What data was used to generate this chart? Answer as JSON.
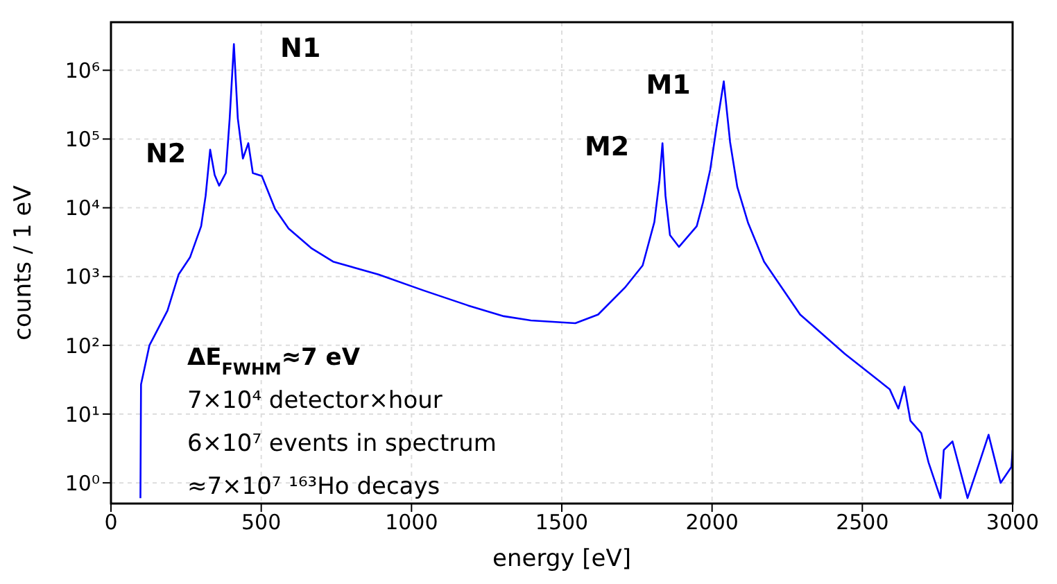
{
  "chart_data": {
    "type": "line",
    "xlabel": "energy [eV]",
    "ylabel": "counts / 1 eV",
    "log": "y",
    "grid": true,
    "marker": "none",
    "line_style": "solid",
    "xlim": [
      0,
      3000
    ],
    "xticks": [
      0,
      500,
      1000,
      1500,
      2000,
      2500,
      3000
    ],
    "ylim": [
      0.5,
      5000000
    ],
    "yticks": [
      {
        "value": 1,
        "label": "10⁰"
      },
      {
        "value": 10,
        "label": "10¹"
      },
      {
        "value": 100,
        "label": "10²"
      },
      {
        "value": 1000,
        "label": "10³"
      },
      {
        "value": 10000,
        "label": "10⁴"
      },
      {
        "value": 100000,
        "label": "10⁵"
      },
      {
        "value": 1000000,
        "label": "10⁶"
      }
    ],
    "series": [
      {
        "color": "#0000ff",
        "x": [
          98,
          100,
          128,
          188,
          225,
          263,
          300,
          315,
          330,
          345,
          360,
          382,
          395,
          409,
          422,
          439,
          457,
          472,
          502,
          546,
          591,
          666,
          739,
          890,
          1039,
          1188,
          1307,
          1397,
          1545,
          1621,
          1710,
          1769,
          1808,
          1825,
          1835,
          1845,
          1860,
          1890,
          1949,
          1970,
          1994,
          2015,
          2039,
          2060,
          2084,
          2120,
          2173,
          2293,
          2442,
          2591,
          2620,
          2640,
          2660,
          2696,
          2720,
          2760,
          2771,
          2800,
          2850,
          2890,
          2920,
          2960,
          2996,
          3000
        ],
        "values": [
          0.6,
          27,
          100,
          320,
          1070,
          1900,
          5400,
          15000,
          70000,
          30000,
          21000,
          32000,
          200000,
          2400000,
          200000,
          52000,
          87000,
          32000,
          29000,
          9600,
          5000,
          2600,
          1650,
          1070,
          630,
          380,
          265,
          230,
          210,
          280,
          690,
          1450,
          6200,
          25000,
          87000,
          15000,
          4000,
          2700,
          5400,
          12000,
          36000,
          150000,
          690000,
          90000,
          20000,
          6000,
          1650,
          280,
          75,
          23,
          12,
          25,
          8,
          5.3,
          2,
          0.6,
          3,
          4,
          0.6,
          2,
          5,
          1,
          1.7,
          3
        ]
      }
    ],
    "annotations": [
      {
        "text": "N1",
        "x": 409,
        "y": 2400000
      },
      {
        "text": "N2",
        "x": 330,
        "y": 70000
      },
      {
        "text": "M2",
        "x": 1835,
        "y": 87000
      },
      {
        "text": "M1",
        "x": 2039,
        "y": 690000
      },
      "ΔE$_{FWHM}$≈7 eV",
      "7×10⁴ detector×hour",
      "6×10⁷ events in spectrum",
      "≈7×10⁷ ¹⁶³Ho decays"
    ]
  }
}
